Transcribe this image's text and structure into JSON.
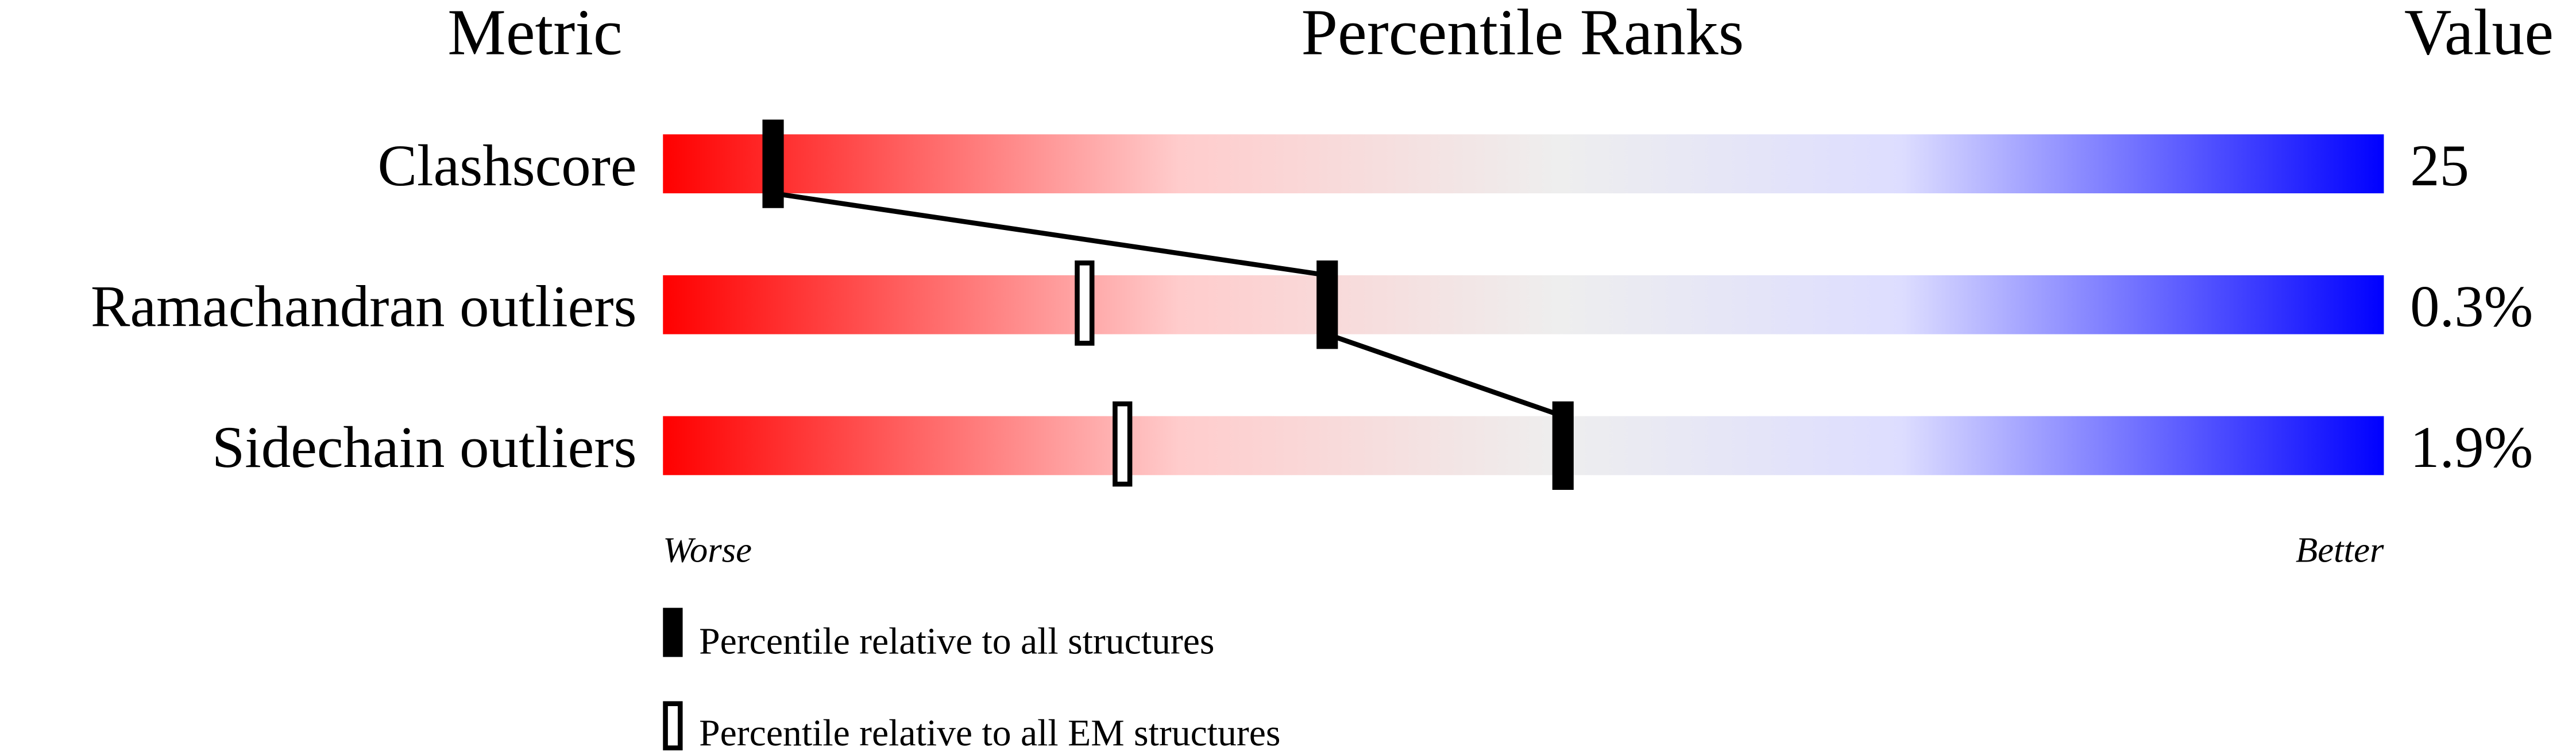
{
  "chart_data": {
    "type": "percentile-slider",
    "headers": {
      "metric": "Metric",
      "title": "Percentile Ranks",
      "value": "Value"
    },
    "xlim": [
      0,
      100
    ],
    "axis_labels": {
      "left": "Worse",
      "right": "Better"
    },
    "gradient_colors": [
      "#ff0000",
      "#ffcccc",
      "#eeeeee",
      "#ddddff",
      "#0000ff"
    ],
    "metrics": [
      {
        "name": "Clashscore",
        "value": "25",
        "percentile_all": 6.4,
        "percentile_em": null
      },
      {
        "name": "Ramachandran outliers",
        "value": "0.3%",
        "percentile_all": 38.6,
        "percentile_em": 24.5
      },
      {
        "name": "Sidechain outliers",
        "value": "1.9%",
        "percentile_all": 52.3,
        "percentile_em": 26.7
      }
    ],
    "legend": [
      {
        "label": "Percentile relative to all structures",
        "style": "filled"
      },
      {
        "label": "Percentile relative to all EM structures",
        "style": "open"
      }
    ]
  }
}
